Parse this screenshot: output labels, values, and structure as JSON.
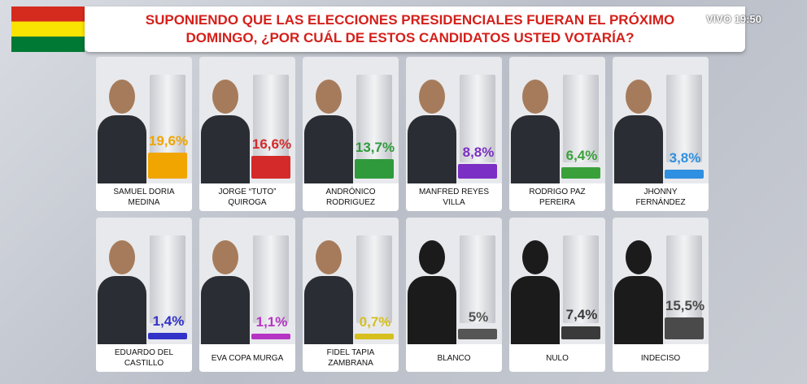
{
  "chart_data": {
    "type": "bar",
    "title": "SUPONIENDO QUE LAS ELECCIONES PRESIDENCIALES FUERAN EL PRÓXIMO DOMINGO, ¿POR CUÁL DE ESTOS CANDIDATOS USTED VOTARÍA?",
    "annotations": [
      "VIVO",
      "19:50"
    ],
    "categories": [
      "SAMUEL DORIA MEDINA",
      "JORGE “TUTO” QUIROGA",
      "ANDRÓNICO RODRIGUEZ",
      "MANFRED REYES VILLA",
      "RODRIGO PAZ PEREIRA",
      "JHONNY FERNÁNDEZ",
      "EDUARDO DEL CASTILLO",
      "EVA COPA MURGA",
      "FIDEL TAPIA ZAMBRANA",
      "BLANCO",
      "NULO",
      "INDECISO"
    ],
    "values": [
      19.6,
      16.6,
      13.7,
      8.8,
      6.4,
      3.8,
      1.4,
      1.1,
      0.7,
      5,
      7.4,
      15.5
    ],
    "value_labels": [
      "19,6%",
      "16,6%",
      "13,7%",
      "8,8%",
      "6,4%",
      "3,8%",
      "1,4%",
      "1,1%",
      "0,7%",
      "5%",
      "7,4%",
      "15,5%"
    ],
    "colors": [
      "#f0a500",
      "#d42a2a",
      "#2f9a3c",
      "#7b2fc4",
      "#3aa13a",
      "#2f8fe0",
      "#3232c8",
      "#b534c4",
      "#d6bf1e",
      "#555555",
      "#3a3a3a",
      "#4a4a4a"
    ]
  }
}
